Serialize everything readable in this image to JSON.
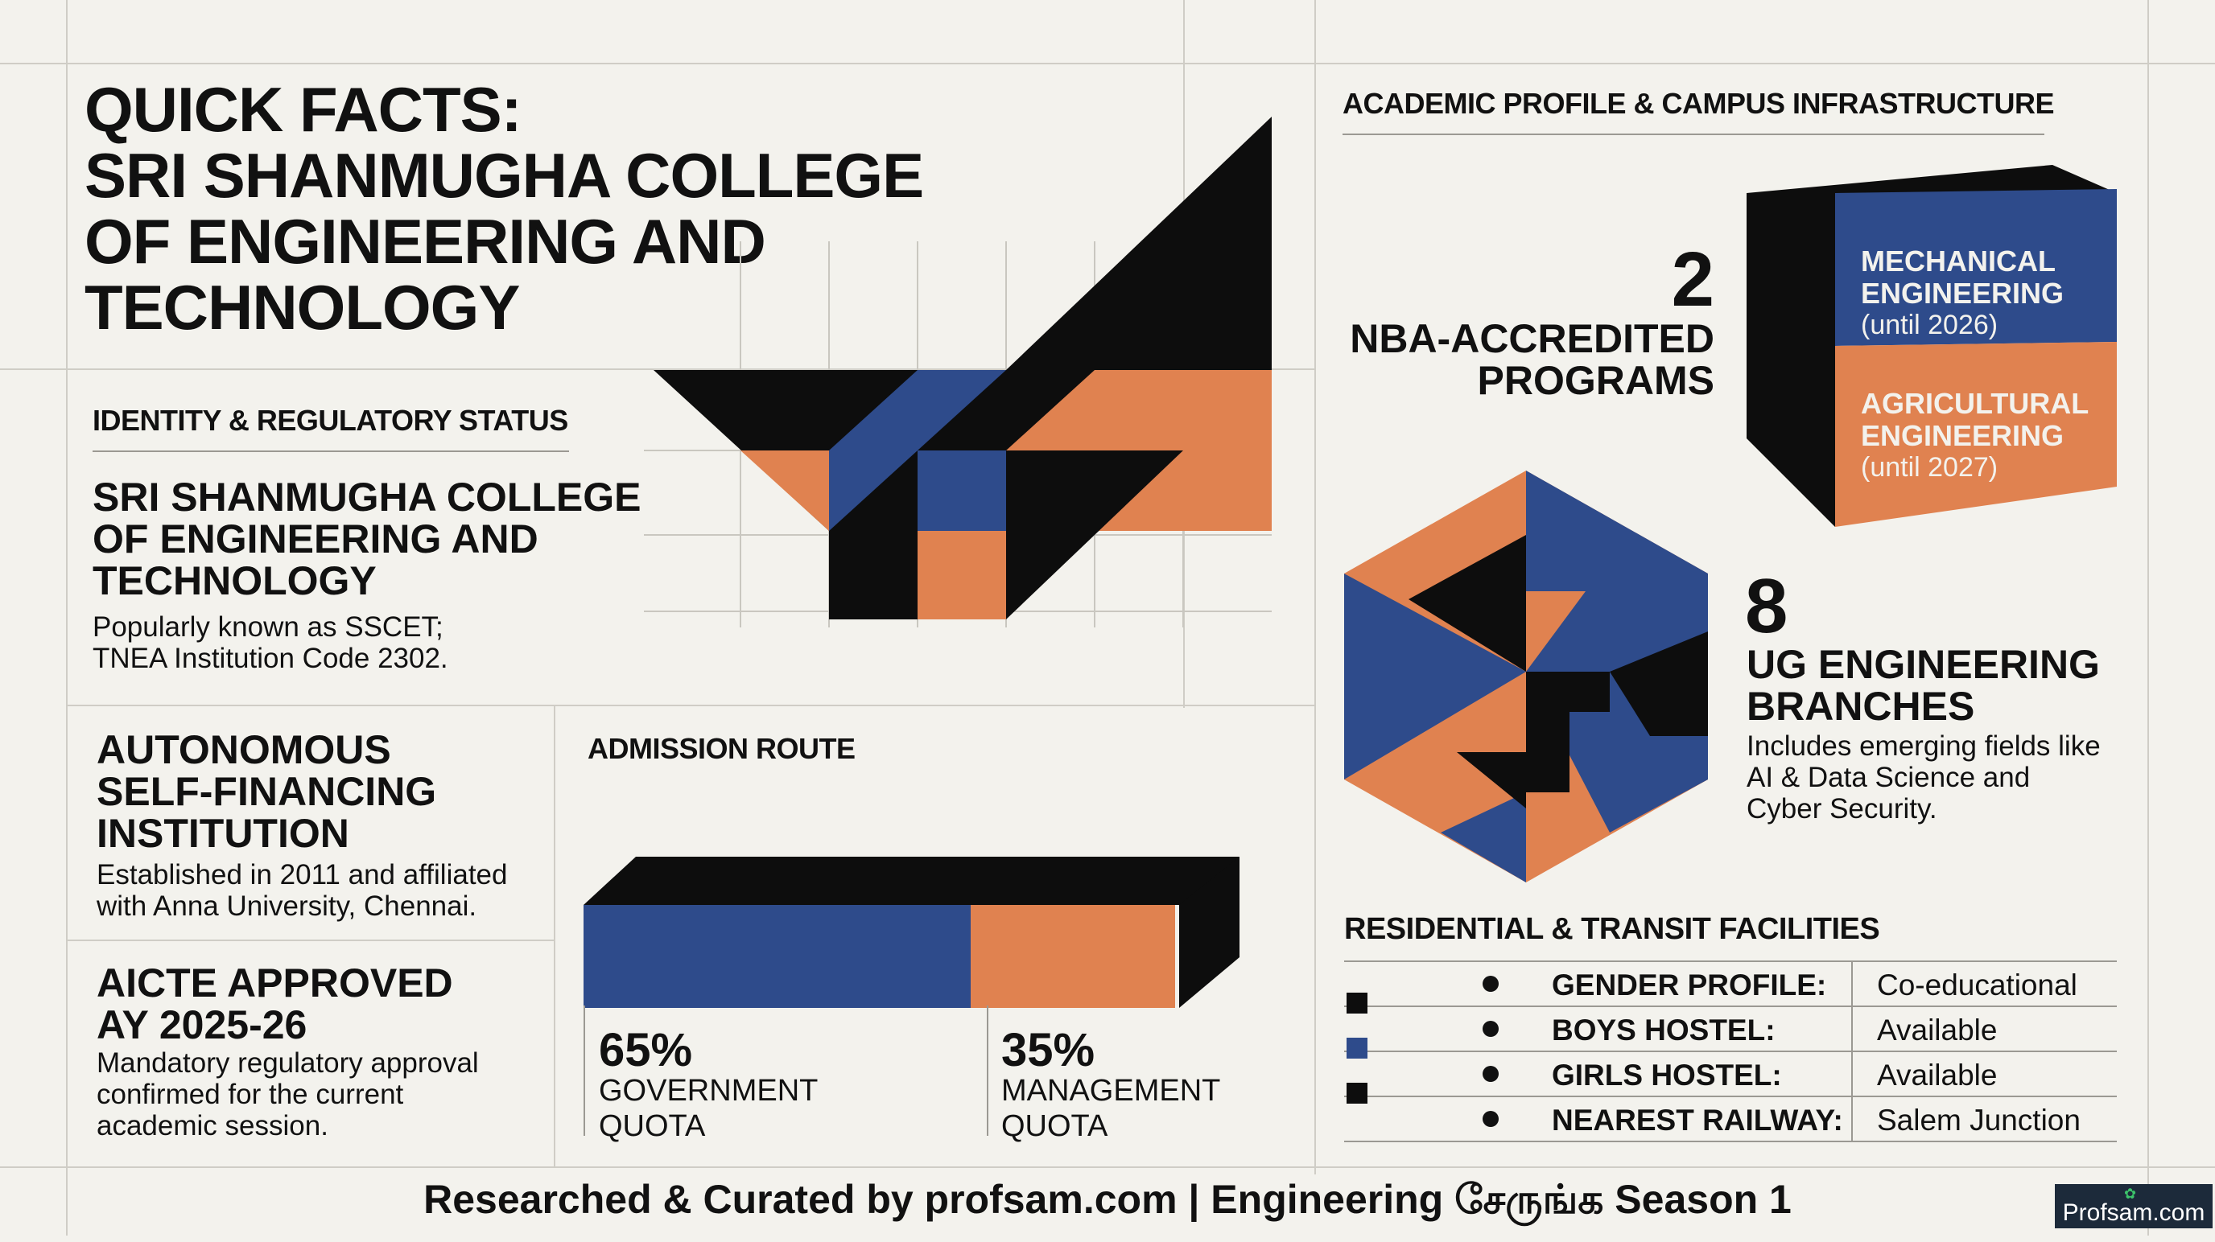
{
  "colors": {
    "navy": "#2e4b8b",
    "orange": "#e08250",
    "black": "#0d0d0d",
    "background": "#f3f2ed"
  },
  "title": "QUICK FACTS:\nSRI SHANMUGHA COLLEGE\nOF ENGINEERING AND\nTECHNOLOGY",
  "identity": {
    "heading": "IDENTITY & REGULATORY STATUS",
    "name": "SRI SHANMUGHA COLLEGE\nOF ENGINEERING AND\nTECHNOLOGY",
    "desc": "Popularly known as SSCET;\nTNEA Institution Code 2302."
  },
  "autonomous": {
    "heading": "AUTONOMOUS\nSELF-FINANCING\nINSTITUTION",
    "desc": "Established in 2011 and affiliated\nwith Anna University, Chennai."
  },
  "aicte": {
    "heading": "AICTE APPROVED\nAY 2025-26",
    "desc": "Mandatory regulatory approval\nconfirmed for the current\nacademic session."
  },
  "admission": {
    "heading": "ADMISSION ROUTE",
    "government": {
      "value": 65,
      "pct": "65%",
      "label": "GOVERNMENT\nQUOTA"
    },
    "management": {
      "value": 35,
      "pct": "35%",
      "label": "MANAGEMENT\nQUOTA"
    }
  },
  "academic": {
    "heading": "ACADEMIC PROFILE & CAMPUS INFRASTRUCTURE",
    "nba_count": "2",
    "nba_label": "NBA-ACCREDITED\nPROGRAMS",
    "nba_programs": [
      {
        "name": "MECHANICAL\nENGINEERING",
        "until": "(until 2026)"
      },
      {
        "name": "AGRICULTURAL\nENGINEERING",
        "until": "(until 2027)"
      }
    ],
    "ug_count": "8",
    "ug_label": "UG ENGINEERING\nBRANCHES",
    "ug_desc": "Includes emerging fields like\nAI & Data Science and\nCyber Security."
  },
  "facilities": {
    "heading": "RESIDENTIAL & TRANSIT FACILITIES",
    "rows": [
      {
        "label": "GENDER PROFILE:",
        "value": "Co-educational"
      },
      {
        "label": "BOYS HOSTEL:",
        "value": "Available"
      },
      {
        "label": "GIRLS HOSTEL:",
        "value": "Available"
      },
      {
        "label": "NEAREST RAILWAY:",
        "value": "Salem Junction"
      }
    ]
  },
  "footer": "Researched & Curated by profsam.com | Engineering சேருங்க Season 1",
  "logo": "Profsam.com"
}
